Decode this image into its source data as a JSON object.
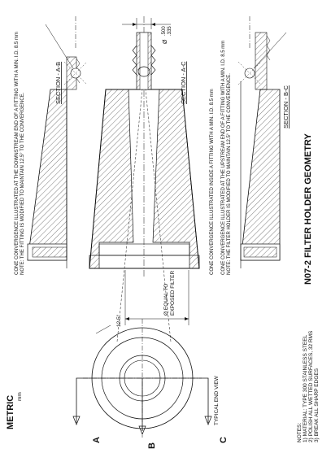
{
  "header": {
    "units_title": "METRIC",
    "units_sub": "mm"
  },
  "title": "N07-2  FILTER HOLDER GEOMETRY",
  "end_view": {
    "label": "TYPICAL END VIEW",
    "cuts": [
      "A",
      "B",
      "C"
    ]
  },
  "sections": {
    "ab": {
      "label": "SECTION - A-B",
      "note1": "CONE CONVERGENCE ILLUSTRATED AT THE DOWNSTREAM END OF A FITTING WITH A MIN. I.D. 8.5 mm",
      "note2": "NOTE: THE FITTING IS MODIFIED TO MAINTAIN 12.5° TO THE CONVERGENCE."
    },
    "ac": {
      "label": "SECTION - A-C",
      "note1": "CONE CONVERGENCE ILLUSTRATED INSIDE A FITTING WITH A MIN. I.D. 8.5 mm",
      "dia": "Ø",
      "dia_upper": ".500",
      "dia_lower": ".335",
      "angle": "12.5°",
      "equal_line1": "Ø EQUAL TO",
      "equal_line2": "EXPOSED FILTER"
    },
    "bc": {
      "label": "SECTION - B-C",
      "note1": "CONE CONVERGENCE ILLUSTRATED AT THE UPSTREAM END OF A FITTING WITH A MIN. I.D. 8.5 mm",
      "note2": "NOTE: THE FILTER HOLDER IS MODIFIED TO MAINTAIN 12.5° TO THE CONVERGENCE."
    }
  },
  "notes": {
    "heading": "NOTES:",
    "items": [
      "1) MATERIAL: TYPE 300 STAINLESS STEEL",
      "2) POLISH ALL WETTED SURFACES, 32 RMS",
      "3) BREAK ALL SHARP EDGES"
    ]
  }
}
